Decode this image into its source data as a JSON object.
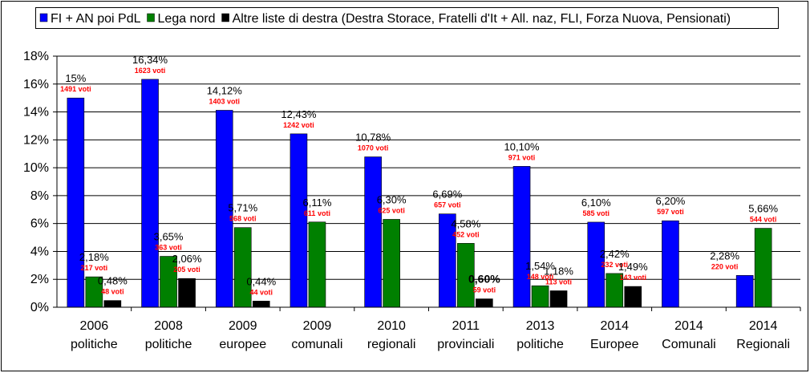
{
  "chart_data": {
    "type": "bar",
    "categories": [
      {
        "year": "2006",
        "type": "politiche"
      },
      {
        "year": "2008",
        "type": "politiche"
      },
      {
        "year": "2009",
        "type": "europee"
      },
      {
        "year": "2009",
        "type": "comunali"
      },
      {
        "year": "2010",
        "type": "regionali"
      },
      {
        "year": "2011",
        "type": "provinciali"
      },
      {
        "year": "2013",
        "type": "politiche"
      },
      {
        "year": "2014",
        "type": "Europee"
      },
      {
        "year": "2014",
        "type": "Comunali"
      },
      {
        "year": "2014",
        "type": "Regionali"
      }
    ],
    "series": [
      {
        "name": "FI + AN poi PdL",
        "color": "#0000ff",
        "values": [
          15,
          16.34,
          14.12,
          12.43,
          10.78,
          6.69,
          10.1,
          6.1,
          6.2,
          2.28
        ],
        "labels": [
          "15%",
          "16,34%",
          "14,12%",
          "12,43%",
          "10,78%",
          "6,69%",
          "10,10%",
          "6,10%",
          "6,20%",
          "2,28%"
        ],
        "votes": [
          "1491 voti",
          "1623 voti",
          "1403 voti",
          "1242 voti",
          "1070 voti",
          "657 voti",
          "971 voti",
          "585 voti",
          "597 voti",
          "220 voti"
        ]
      },
      {
        "name": "Lega nord",
        "color": "#008000",
        "values": [
          2.18,
          3.65,
          5.71,
          6.11,
          6.3,
          4.58,
          1.54,
          2.42,
          null,
          5.66
        ],
        "labels": [
          "2,18%",
          "3,65%",
          "5,71%",
          "6,11%",
          "6,30%",
          "4,58%",
          "1,54%",
          "2,42%",
          null,
          "5,66%"
        ],
        "votes": [
          "217 voti",
          "363 voti",
          "568 voti",
          "611 voti",
          "625 voti",
          "452 voti",
          "148 voti",
          "232 voti",
          null,
          "544 voti"
        ]
      },
      {
        "name": "Altre liste di destra (Destra Storace, Fratelli d'It + All. naz, FLI, Forza Nuova, Pensionati)",
        "color": "#000000",
        "values": [
          0.48,
          2.06,
          0.44,
          null,
          null,
          0.6,
          1.18,
          1.49,
          null,
          null
        ],
        "labels": [
          "0,48%",
          "2,06%",
          "0,44%",
          null,
          null,
          "0,60%",
          "1,18%",
          "1,49%",
          null,
          null
        ],
        "votes": [
          "48 voti",
          "205 voti",
          "44 voti",
          null,
          null,
          "59 voti",
          "113 voti",
          "143 voti",
          null,
          null
        ]
      }
    ],
    "ylim": [
      0,
      18
    ],
    "yticks": [
      0,
      2,
      4,
      6,
      8,
      10,
      12,
      14,
      16,
      18
    ],
    "ytick_labels": [
      "0%",
      "2%",
      "4%",
      "6%",
      "8%",
      "10%",
      "12%",
      "14%",
      "16%",
      "18%"
    ],
    "grid": true,
    "legend_position": "top"
  }
}
